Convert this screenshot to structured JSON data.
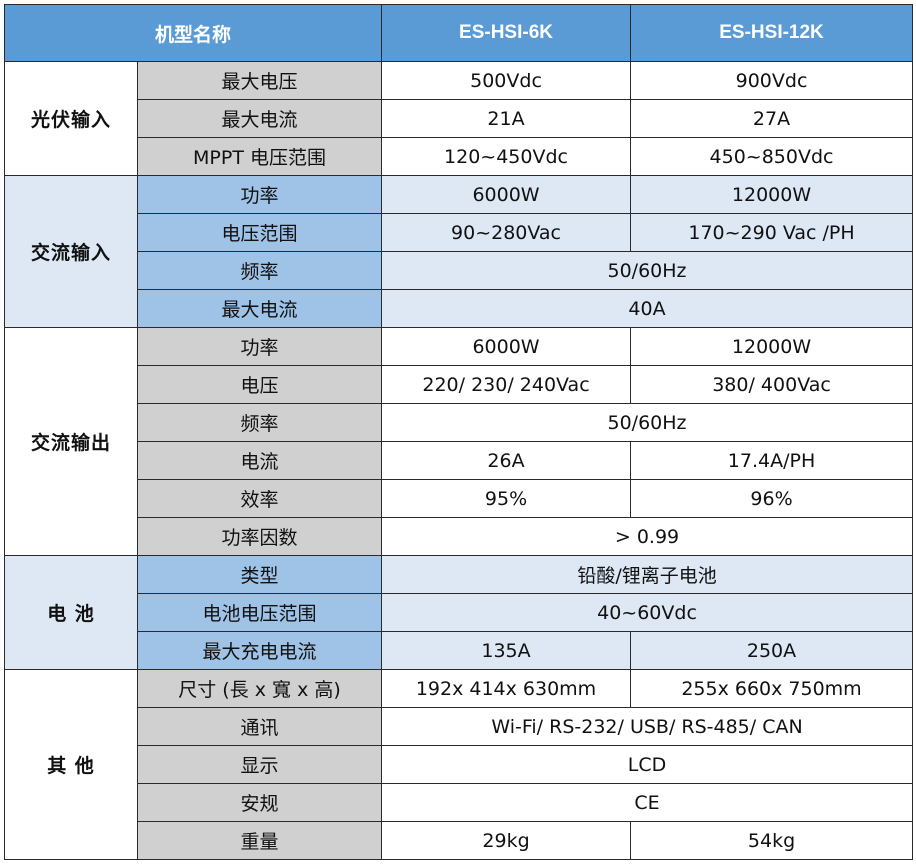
{
  "header": {
    "model_label": "机型名称",
    "model_1": "ES-HSI-6K",
    "model_2": "ES-HSI-12K"
  },
  "sections": {
    "pv_input": {
      "title": "光伏输入",
      "rows": [
        {
          "label": "最大电压",
          "v1": "500Vdc",
          "v2": "900Vdc"
        },
        {
          "label": "最大电流",
          "v1": "21A",
          "v2": "27A"
        },
        {
          "label": "MPPT 电压范围",
          "v1": "120~450Vdc",
          "v2": "450~850Vdc"
        }
      ]
    },
    "ac_input": {
      "title": "交流输入",
      "rows": [
        {
          "label": "功率",
          "v1": "6000W",
          "v2": "12000W"
        },
        {
          "label": "电压范围",
          "v1": "90~280Vac",
          "v2": "170~290 Vac /PH"
        },
        {
          "label": "频率",
          "value": "50/60Hz"
        },
        {
          "label": "最大电流",
          "value": "40A"
        }
      ]
    },
    "ac_output": {
      "title": "交流输出",
      "rows": [
        {
          "label": "功率",
          "v1": "6000W",
          "v2": "12000W"
        },
        {
          "label": "电压",
          "v1": "220/ 230/ 240Vac",
          "v2": "380/ 400Vac"
        },
        {
          "label": "频率",
          "value": "50/60Hz"
        },
        {
          "label": "电流",
          "v1": "26A",
          "v2": "17.4A/PH"
        },
        {
          "label": "效率",
          "v1": "95%",
          "v2": "96%"
        },
        {
          "label": "功率因数",
          "value": "> 0.99"
        }
      ]
    },
    "battery": {
      "title": "电 池",
      "rows": [
        {
          "label": "类型",
          "value": "铅酸/锂离子电池"
        },
        {
          "label": "电池电压范围",
          "value": "40~60Vdc"
        },
        {
          "label": "最大充电电流",
          "v1": "135A",
          "v2": "250A"
        }
      ]
    },
    "other": {
      "title": "其 他",
      "rows": [
        {
          "label": "尺寸 (長 x 寬 x 高)",
          "v1": "192x 414x 630mm",
          "v2": "255x 660x 750mm"
        },
        {
          "label": "通讯",
          "value": "Wi-Fi/ RS-232/ USB/ RS-485/ CAN"
        },
        {
          "label": "显示",
          "value": "LCD"
        },
        {
          "label": "安规",
          "value": "CE"
        },
        {
          "label": "重量",
          "v1": "29kg",
          "v2": "54kg"
        }
      ]
    }
  },
  "colors": {
    "header_bg": "#5b9bd5",
    "label_bg": "#d0d0d0",
    "shaded_row_bg": "#dde8f4",
    "shaded_label_bg": "#9fc3e6"
  }
}
